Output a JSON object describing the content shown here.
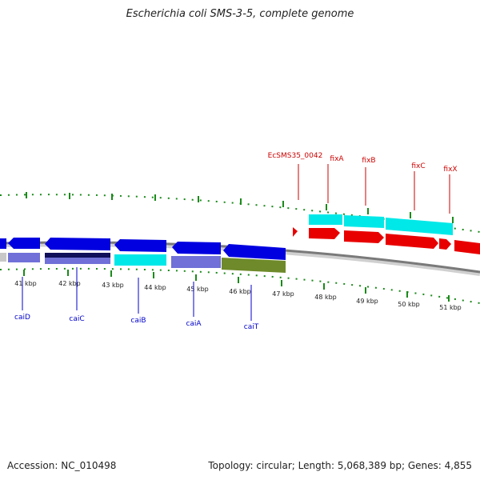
{
  "title": "Escherichia coli SMS-3-5, complete genome",
  "footer": {
    "accession": "Accession: NC_010498",
    "summary": "Topology: circular; Length: 5,068,389 bp; Genes: 4,855"
  },
  "colors": {
    "reverse_gene": "#0000e0",
    "forward_gene": "#e80000",
    "forward_cds": "#00e8e8",
    "reverse_cds_1": "#7070d8",
    "reverse_cds_2": "#10105a",
    "reverse_cds_3": "#00e8e8",
    "reverse_cds_4": "#7070d8",
    "reverse_cds_5": "#6e8a2a",
    "tick": "#1a8a1a",
    "backbone": "#808080",
    "label_blue": "#0000cc",
    "label_red": "#cc0000"
  },
  "scale": {
    "tick_labels": [
      "41 kbp",
      "42 kbp",
      "43 kbp",
      "44 kbp",
      "45 kbp",
      "46 kbp",
      "47 kbp",
      "48 kbp",
      "49 kbp",
      "50 kbp",
      "51 kbp"
    ]
  },
  "genes_reverse": [
    {
      "name": "caiD"
    },
    {
      "name": "caiC"
    },
    {
      "name": "caiB"
    },
    {
      "name": "caiA"
    },
    {
      "name": "caiT"
    }
  ],
  "genes_forward": [
    {
      "name": "EcSMS35_0042"
    },
    {
      "name": "fixA"
    },
    {
      "name": "fixB"
    },
    {
      "name": "fixC"
    },
    {
      "name": "fixX"
    }
  ]
}
